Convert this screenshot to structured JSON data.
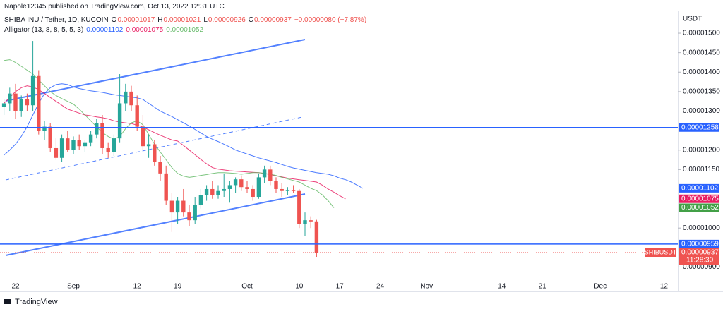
{
  "header": "Napole12345 published on TradingView.com, Oct 13, 2022 12:31 UTC",
  "footer": "TradingView",
  "chart_data": {
    "type": "candlestick",
    "title": "SHIBA INU / Tether, 1D, KUCOIN",
    "ohlc_legend": [
      {
        "key": "O",
        "value": "0.00001017"
      },
      {
        "key": "H",
        "value": "0.00001021"
      },
      {
        "key": "L",
        "value": "0.00000926"
      },
      {
        "key": "C",
        "value": "0.00000937"
      }
    ],
    "change": "−0.00000080 (−7.87%)",
    "axis_unit": "USDT",
    "up_color": "#26a69a",
    "down_color": "#ef5350",
    "ylim": [
      8.7e-06,
      1.558e-05
    ],
    "yticks": [
      {
        "value": 1.5e-05,
        "label": "0.00001500"
      },
      {
        "value": 1.45e-05,
        "label": "0.00001450"
      },
      {
        "value": 1.4e-05,
        "label": "0.00001400"
      },
      {
        "value": 1.35e-05,
        "label": "0.00001350"
      },
      {
        "value": 1.3e-05,
        "label": "0.00001300"
      },
      {
        "value": 1.2e-05,
        "label": "0.00001200"
      },
      {
        "value": 1.15e-05,
        "label": "0.00001150"
      },
      {
        "value": 1e-05,
        "label": "0.00001000"
      },
      {
        "value": 9e-06,
        "label": "0.00000900"
      }
    ],
    "categories": [
      null,
      null,
      "22",
      null,
      null,
      null,
      null,
      null,
      null,
      null,
      null,
      null,
      "Sep",
      null,
      null,
      null,
      null,
      null,
      null,
      null,
      null,
      null,
      null,
      "12",
      null,
      null,
      null,
      null,
      null,
      null,
      "19",
      null,
      null,
      null,
      null,
      null,
      null,
      null,
      null,
      null,
      null,
      null,
      "Oct",
      null,
      null,
      null,
      null,
      null,
      null,
      null,
      null,
      "10",
      null,
      null,
      null,
      null,
      null,
      null,
      "17",
      null,
      null,
      null,
      null,
      null,
      null,
      "24",
      null,
      null,
      null,
      null,
      null,
      null,
      null,
      "Nov",
      null,
      null,
      null,
      null,
      null,
      null,
      null,
      null,
      null,
      null,
      null,
      null,
      "14",
      null,
      null,
      null,
      null,
      null,
      null,
      "21",
      null,
      null,
      null,
      null,
      null,
      null,
      null,
      null,
      null,
      "Dec",
      null,
      null,
      null,
      null,
      null,
      null,
      null,
      null,
      null,
      null,
      "12",
      null,
      null
    ],
    "open": [
      1.31e-05,
      1.32e-05,
      1.345e-05,
      1.3e-05,
      1.33e-05,
      1.315e-05,
      1.39e-05,
      1.25e-05,
      1.26e-05,
      1.205e-05,
      1.18e-05,
      1.23e-05,
      1.2e-05,
      1.225e-05,
      1.21e-05,
      1.22e-05,
      1.24e-05,
      1.27e-05,
      1.205e-05,
      1.195e-05,
      1.23e-05,
      1.32e-05,
      1.35e-05,
      1.315e-05,
      1.26e-05,
      1.21e-05,
      1.215e-05,
      1.17e-05,
      1.14e-05,
      1.07e-05,
      1.04e-05,
      1.07e-05,
      1.04e-05,
      1.02e-05,
      1.06e-05,
      1.085e-05,
      1.1e-05,
      1.085e-05,
      1.095e-05,
      1.1e-05,
      1.11e-05,
      1.125e-05,
      1.105e-05,
      1.1e-05,
      1.08e-05,
      1.13e-05,
      1.15e-05,
      1.12e-05,
      1.1e-05,
      1.095e-05,
      1.098e-05,
      1.095e-05,
      1.01e-05,
      1.02e-05,
      1.017e-05,
      null,
      null,
      null,
      null,
      null,
      null,
      null,
      null,
      null,
      null,
      null,
      null,
      null,
      null,
      null,
      null,
      null,
      null,
      null,
      null,
      null,
      null,
      null,
      null,
      null,
      null,
      null,
      null,
      null,
      null,
      null,
      null,
      null,
      null,
      null,
      null,
      null,
      null,
      null,
      null,
      null,
      null,
      null,
      null,
      null,
      null,
      null,
      null,
      null,
      null,
      null,
      null,
      null,
      null,
      null,
      null,
      null,
      null,
      null,
      null,
      null,
      null
    ],
    "high": [
      1.33e-05,
      1.36e-05,
      1.37e-05,
      1.34e-05,
      1.345e-05,
      1.48e-05,
      1.405e-05,
      1.275e-05,
      1.27e-05,
      1.23e-05,
      1.24e-05,
      1.25e-05,
      1.235e-05,
      1.24e-05,
      1.225e-05,
      1.25e-05,
      1.28e-05,
      1.29e-05,
      1.22e-05,
      1.24e-05,
      1.395e-05,
      1.37e-05,
      1.365e-05,
      1.34e-05,
      1.29e-05,
      1.24e-05,
      1.225e-05,
      1.185e-05,
      1.16e-05,
      1.09e-05,
      1.08e-05,
      1.1e-05,
      1.06e-05,
      1.08e-05,
      1.1e-05,
      1.11e-05,
      1.12e-05,
      1.11e-05,
      1.14e-05,
      1.12e-05,
      1.13e-05,
      1.135e-05,
      1.12e-05,
      1.11e-05,
      1.14e-05,
      1.16e-05,
      1.16e-05,
      1.13e-05,
      1.115e-05,
      1.105e-05,
      1.11e-05,
      1.1e-05,
      1.04e-05,
      1.03e-05,
      1.021e-05,
      null,
      null,
      null,
      null,
      null,
      null,
      null,
      null,
      null,
      null,
      null,
      null,
      null,
      null,
      null,
      null,
      null,
      null,
      null,
      null,
      null,
      null,
      null,
      null,
      null,
      null,
      null,
      null,
      null,
      null,
      null,
      null,
      null,
      null,
      null,
      null,
      null,
      null,
      null,
      null,
      null,
      null,
      null,
      null,
      null,
      null,
      null,
      null,
      null,
      null,
      null,
      null,
      null,
      null,
      null,
      null,
      null,
      null,
      null,
      null,
      null,
      null
    ],
    "low": [
      1.29e-05,
      1.3e-05,
      1.28e-05,
      1.285e-05,
      1.3e-05,
      1.3e-05,
      1.24e-05,
      1.225e-05,
      1.195e-05,
      1.175e-05,
      1.17e-05,
      1.195e-05,
      1.19e-05,
      1.2e-05,
      1.195e-05,
      1.21e-05,
      1.23e-05,
      1.19e-05,
      1.18e-05,
      1.185e-05,
      1.22e-05,
      1.3e-05,
      1.3e-05,
      1.25e-05,
      1.2e-05,
      1.18e-05,
      1.16e-05,
      1.12e-05,
      1.06e-05,
      9.9e-06,
      1.01e-05,
      1.03e-05,
      1.005e-05,
      1.01e-05,
      1.05e-05,
      1.07e-05,
      1.075e-05,
      1.075e-05,
      1.08e-05,
      1.065e-05,
      1.09e-05,
      1.095e-05,
      1.09e-05,
      1.07e-05,
      1.075e-05,
      1.115e-05,
      1.11e-05,
      1.09e-05,
      1.08e-05,
      1.085e-05,
      1.09e-05,
      1e-05,
      9.8e-06,
      1e-05,
      9.26e-06,
      null,
      null,
      null,
      null,
      null,
      null,
      null,
      null,
      null,
      null,
      null,
      null,
      null,
      null,
      null,
      null,
      null,
      null,
      null,
      null,
      null,
      null,
      null,
      null,
      null,
      null,
      null,
      null,
      null,
      null,
      null,
      null,
      null,
      null,
      null,
      null,
      null,
      null,
      null,
      null,
      null,
      null,
      null,
      null,
      null,
      null,
      null,
      null,
      null,
      null,
      null,
      null,
      null,
      null,
      null,
      null,
      null,
      null,
      null,
      null,
      null,
      null
    ],
    "close": [
      1.32e-05,
      1.345e-05,
      1.3e-05,
      1.33e-05,
      1.315e-05,
      1.39e-05,
      1.25e-05,
      1.26e-05,
      1.205e-05,
      1.18e-05,
      1.23e-05,
      1.2e-05,
      1.225e-05,
      1.21e-05,
      1.22e-05,
      1.24e-05,
      1.27e-05,
      1.205e-05,
      1.195e-05,
      1.23e-05,
      1.32e-05,
      1.35e-05,
      1.315e-05,
      1.26e-05,
      1.21e-05,
      1.215e-05,
      1.17e-05,
      1.14e-05,
      1.07e-05,
      1.04e-05,
      1.07e-05,
      1.04e-05,
      1.02e-05,
      1.06e-05,
      1.085e-05,
      1.1e-05,
      1.085e-05,
      1.095e-05,
      1.1e-05,
      1.11e-05,
      1.125e-05,
      1.105e-05,
      1.1e-05,
      1.08e-05,
      1.13e-05,
      1.15e-05,
      1.12e-05,
      1.1e-05,
      1.095e-05,
      1.098e-05,
      1.095e-05,
      1.01e-05,
      1.02e-05,
      1.017e-05,
      9.37e-06,
      null,
      null,
      null,
      null,
      null,
      null,
      null,
      null,
      null,
      null,
      null,
      null,
      null,
      null,
      null,
      null,
      null,
      null,
      null,
      null,
      null,
      null,
      null,
      null,
      null,
      null,
      null,
      null,
      null,
      null,
      null,
      null,
      null,
      null,
      null,
      null,
      null,
      null,
      null,
      null,
      null,
      null,
      null,
      null,
      null,
      null,
      null,
      null,
      null,
      null,
      null,
      null,
      null,
      null,
      null,
      null,
      null,
      null,
      null,
      null,
      null,
      null
    ],
    "indicator": {
      "title": "Alligator (13, 8, 8, 5, 5, 3)",
      "lines": [
        {
          "color": "#2962ff",
          "legend": "0.00001102",
          "values": [
            1.187e-05,
            1.2e-05,
            1.215e-05,
            1.235e-05,
            1.26e-05,
            1.29e-05,
            1.32e-05,
            1.345e-05,
            1.36e-05,
            1.368e-05,
            1.37e-05,
            1.368e-05,
            1.362e-05,
            1.358e-05,
            1.355e-05,
            1.352e-05,
            1.35e-05,
            1.348e-05,
            1.345e-05,
            1.342e-05,
            1.34e-05,
            1.338e-05,
            1.336e-05,
            1.334e-05,
            1.33e-05,
            1.32e-05,
            1.31e-05,
            1.3e-05,
            1.293e-05,
            1.286e-05,
            1.278e-05,
            1.27e-05,
            1.262e-05,
            1.253e-05,
            1.244e-05,
            1.235e-05,
            1.228e-05,
            1.222e-05,
            1.215e-05,
            1.208e-05,
            1.2e-05,
            1.195e-05,
            1.19e-05,
            1.185e-05,
            1.18e-05,
            1.176e-05,
            1.172e-05,
            1.168e-05,
            1.163e-05,
            1.158e-05,
            1.154e-05,
            1.151e-05,
            1.148e-05,
            1.145e-05,
            1.142e-05,
            1.14e-05,
            1.138e-05,
            1.134e-05,
            1.128e-05,
            1.124e-05,
            1.118e-05,
            1.11e-05,
            1.102e-05,
            null,
            null,
            null,
            null,
            null,
            null,
            null,
            null,
            null,
            null,
            null,
            null,
            null,
            null,
            null,
            null,
            null,
            null,
            null,
            null,
            null,
            null,
            null,
            null,
            null,
            null,
            null,
            null,
            null,
            null,
            null,
            null,
            null,
            null,
            null,
            null,
            null,
            null,
            null,
            null,
            null,
            null,
            null,
            null,
            null,
            null,
            null,
            null,
            null,
            null,
            null,
            null,
            null,
            null
          ]
        },
        {
          "color": "#e91e63",
          "legend": "0.00001075",
          "values": [
            1.32e-05,
            1.335e-05,
            1.35e-05,
            1.36e-05,
            1.365e-05,
            1.362e-05,
            1.355e-05,
            1.345e-05,
            1.335e-05,
            1.325e-05,
            1.315e-05,
            1.305e-05,
            1.3e-05,
            1.295e-05,
            1.29e-05,
            1.288e-05,
            1.285e-05,
            1.283e-05,
            1.28e-05,
            1.275e-05,
            1.272e-05,
            1.27e-05,
            1.268e-05,
            1.264e-05,
            1.259e-05,
            1.252e-05,
            1.245e-05,
            1.238e-05,
            1.232e-05,
            1.226e-05,
            1.223e-05,
            1.212e-05,
            1.2e-05,
            1.188e-05,
            1.176e-05,
            1.165e-05,
            1.155e-05,
            1.151e-05,
            1.149e-05,
            1.147e-05,
            1.146e-05,
            1.145e-05,
            1.144e-05,
            1.143e-05,
            1.142e-05,
            1.14e-05,
            1.137e-05,
            1.134e-05,
            1.131e-05,
            1.128e-05,
            1.126e-05,
            1.124e-05,
            1.122e-05,
            1.12e-05,
            1.118e-05,
            1.11e-05,
            1.1e-05,
            1.092e-05,
            1.083e-05,
            1.075e-05,
            null,
            null,
            null,
            null,
            null,
            null,
            null,
            null,
            null,
            null,
            null,
            null,
            null,
            null,
            null,
            null,
            null,
            null,
            null,
            null,
            null,
            null,
            null,
            null,
            null,
            null,
            null,
            null,
            null,
            null,
            null,
            null,
            null,
            null,
            null,
            null,
            null,
            null,
            null,
            null,
            null,
            null,
            null,
            null,
            null,
            null,
            null,
            null,
            null,
            null,
            null,
            null,
            null,
            null,
            null,
            null,
            null
          ]
        },
        {
          "color": "#66bb6a",
          "legend": "0.00001052",
          "values": [
            1.43e-05,
            1.432e-05,
            1.425e-05,
            1.415e-05,
            1.405e-05,
            1.395e-05,
            1.38e-05,
            1.365e-05,
            1.35e-05,
            1.34e-05,
            1.332e-05,
            1.325e-05,
            1.318e-05,
            1.305e-05,
            1.29e-05,
            1.275e-05,
            1.26e-05,
            1.245e-05,
            1.235e-05,
            1.228e-05,
            1.235e-05,
            1.255e-05,
            1.27e-05,
            1.275e-05,
            1.265e-05,
            1.24e-05,
            1.215e-05,
            1.195e-05,
            1.175e-05,
            1.155e-05,
            1.14e-05,
            1.133e-05,
            1.13e-05,
            1.132e-05,
            1.135e-05,
            1.137e-05,
            1.14e-05,
            1.142e-05,
            1.142e-05,
            1.141e-05,
            1.14e-05,
            1.138e-05,
            1.14e-05,
            1.142e-05,
            1.142e-05,
            1.14e-05,
            1.138e-05,
            1.135e-05,
            1.13e-05,
            1.126e-05,
            1.122e-05,
            1.118e-05,
            1.11e-05,
            1.102e-05,
            1.096e-05,
            1.085e-05,
            1.07e-05,
            1.052e-05,
            null,
            null,
            null,
            null,
            null,
            null,
            null,
            null,
            null,
            null,
            null,
            null,
            null,
            null,
            null,
            null,
            null,
            null,
            null,
            null,
            null,
            null,
            null,
            null,
            null,
            null,
            null,
            null,
            null,
            null,
            null,
            null,
            null,
            null,
            null,
            null,
            null,
            null,
            null,
            null,
            null,
            null,
            null,
            null,
            null,
            null,
            null,
            null,
            null,
            null,
            null,
            null,
            null,
            null,
            null,
            null,
            null,
            null,
            null
          ]
        }
      ]
    },
    "markers": [
      {
        "value": 1.258e-05,
        "label": "0.00001258",
        "color": "#2962ff",
        "line": "solid"
      },
      {
        "value": 1.102e-05,
        "label": "0.00001102",
        "color": "#2962ff"
      },
      {
        "value": 1.075e-05,
        "label": "0.00001075",
        "color": "#e91e63"
      },
      {
        "value": 1.052e-05,
        "label": "0.00001052",
        "color": "#43a047"
      },
      {
        "value": 9.59e-06,
        "label": "0.00000959",
        "color": "#2962ff",
        "line": "solid"
      },
      {
        "value": 9.37e-06,
        "label": "0.00000937",
        "color": "#ef5350",
        "line": "dotted",
        "symbol": "SHIBUSDT",
        "countdown": "11:28:30"
      }
    ]
  }
}
